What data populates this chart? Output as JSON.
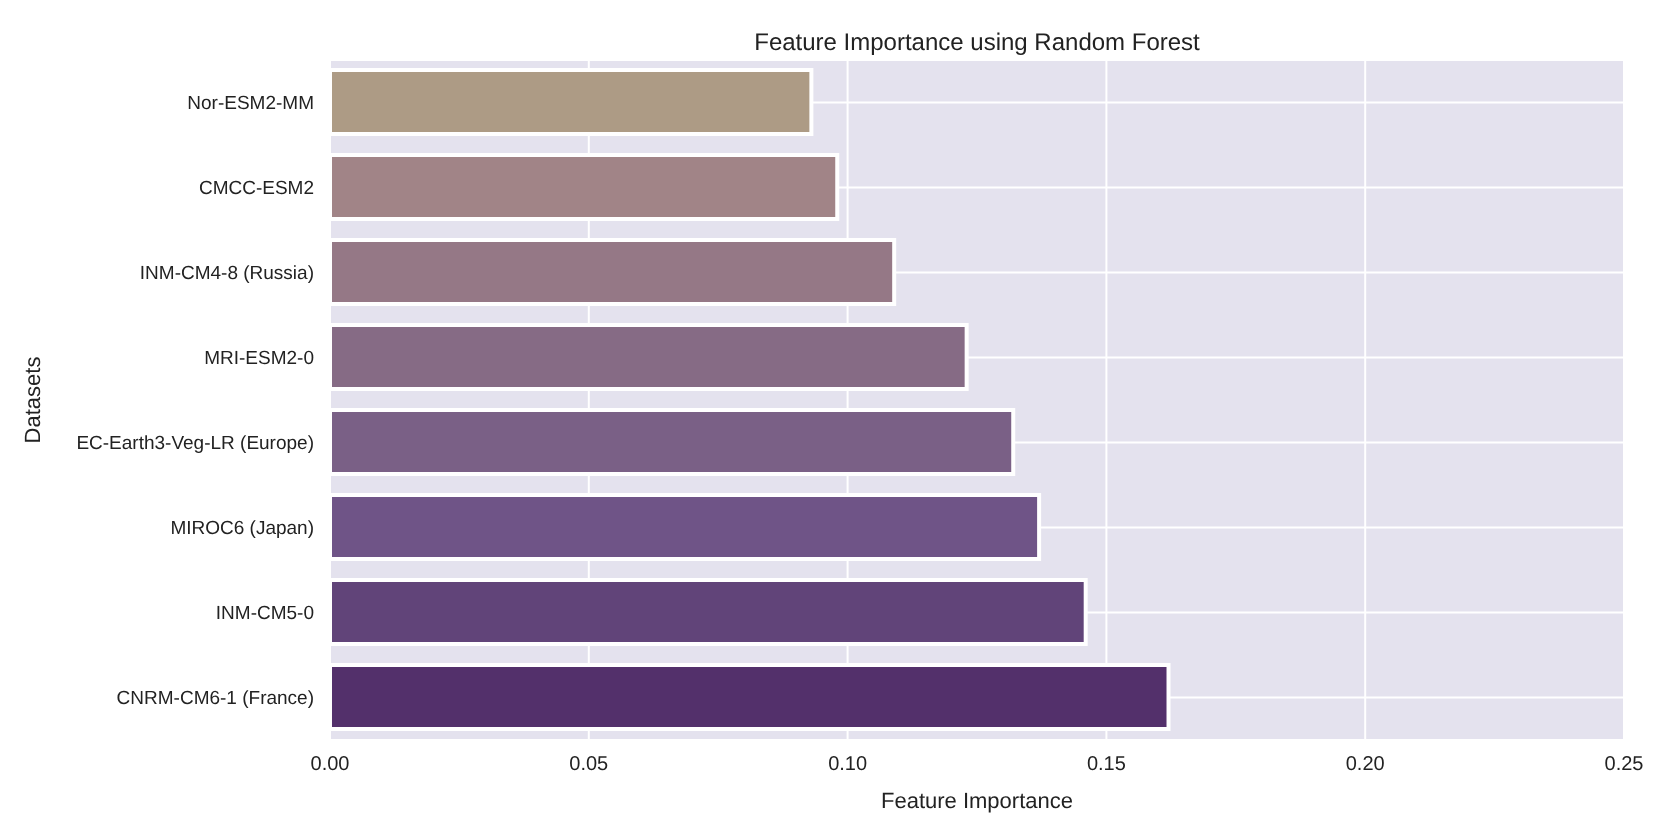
{
  "chart_data": {
    "type": "bar",
    "orientation": "horizontal",
    "title": "Feature Importance using Random Forest",
    "xlabel": "Feature Importance",
    "ylabel": "Datasets",
    "categories": [
      "Nor-ESM2-MM",
      "CMCC-ESM2",
      "INM-CM4-8 (Russia)",
      "MRI-ESM2-0",
      "EC-Earth3-Veg-LR (Europe)",
      "MIROC6 (Japan)",
      "INM-CM5-0",
      "CNRM-CM6-1 (France)"
    ],
    "values": [
      0.093,
      0.098,
      0.109,
      0.123,
      0.132,
      0.137,
      0.146,
      0.162
    ],
    "colors": [
      "#ad9b85",
      "#a18487",
      "#957886",
      "#866b85",
      "#7a6086",
      "#6f5487",
      "#614479",
      "#53306b"
    ],
    "xlim": [
      0,
      0.25
    ],
    "xticks": [
      {
        "value": 0,
        "label": "0.00"
      },
      {
        "value": 0.05,
        "label": "0.05"
      },
      {
        "value": 0.1,
        "label": "0.10"
      },
      {
        "value": 0.15,
        "label": "0.15"
      },
      {
        "value": 0.2,
        "label": "0.20"
      },
      {
        "value": 0.25,
        "label": "0.25"
      }
    ],
    "grid": true
  }
}
